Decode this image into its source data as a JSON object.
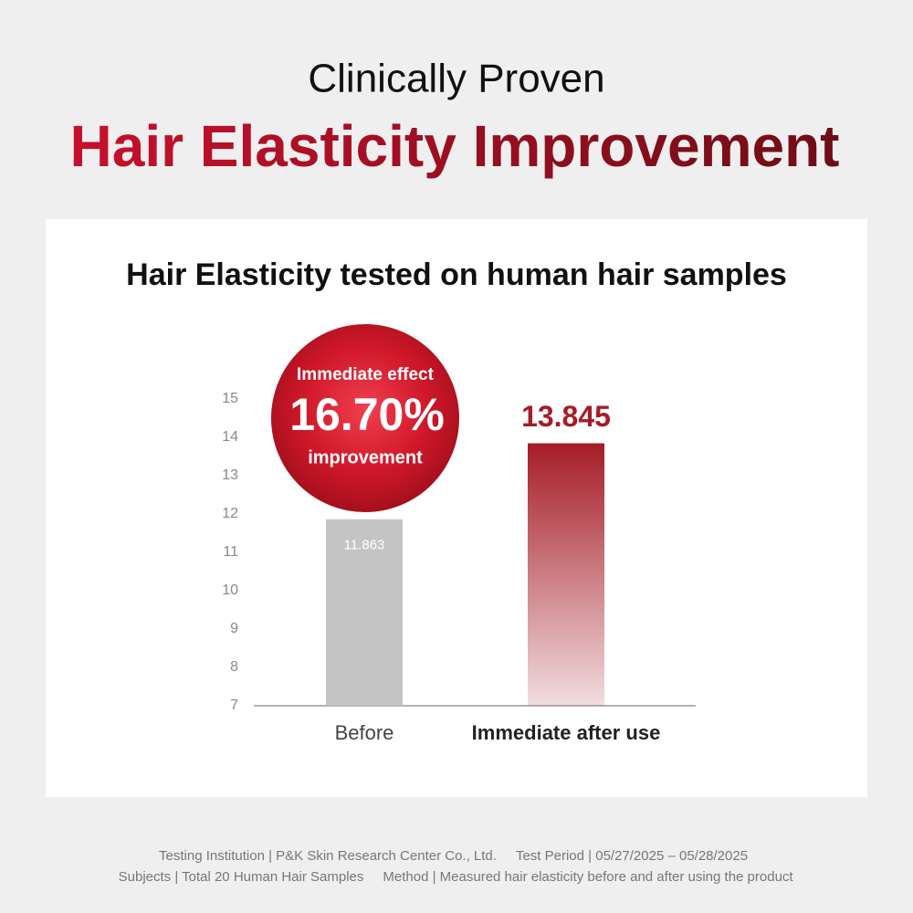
{
  "header": {
    "eyebrow": "Clinically Proven",
    "title": "Hair Elasticity Improvement"
  },
  "chart_data": {
    "type": "bar",
    "title": "Hair Elasticity tested on human hair samples",
    "categories": [
      "Before",
      "Immediate after use"
    ],
    "values": [
      11.863,
      13.845
    ],
    "colors": [
      "#c4c4c4",
      "#a51c27"
    ],
    "ylim": [
      7,
      15
    ],
    "yticks": [
      7,
      8,
      9,
      10,
      11,
      12,
      13,
      14,
      15
    ],
    "annotation": {
      "top": "Immediate effect",
      "big": "16.70%",
      "bottom": "improvement"
    }
  },
  "footer": {
    "items": [
      "Testing Institution | P&K Skin Research Center Co., Ltd.",
      "Test Period | 05/27/2025 – 05/28/2025",
      "Subjects | Total 20 Human Hair Samples",
      "Method | Measured hair elasticity before and after using the product"
    ]
  }
}
